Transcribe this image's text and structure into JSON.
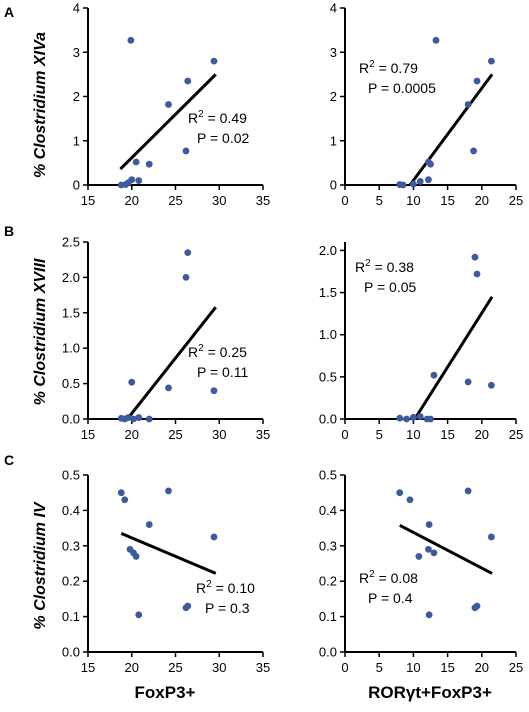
{
  "panel_letters": [
    "A",
    "B",
    "C"
  ],
  "row_labels": [
    "% Clostridium XIVa",
    "% Clostridium XVIII",
    "% Clostridium IV"
  ],
  "row_label_prefix": "% ",
  "row_label_names": [
    "Clostridium XIVa",
    "Clostridium XVIII",
    "Clostridium IV"
  ],
  "x_labels": [
    "FoxP3+",
    "RORγt+FoxP3+"
  ],
  "colors": {
    "point": "#3d5a9e",
    "line": "#000000",
    "axis": "#000000"
  },
  "chart_data": [
    {
      "id": "A-left",
      "type": "scatter",
      "xlim": [
        15,
        35
      ],
      "xticks": [
        "15",
        "20",
        "25",
        "30",
        "35"
      ],
      "ylim": [
        0,
        4
      ],
      "yticks": [
        "0",
        "1",
        "2",
        "3",
        "4"
      ],
      "points": [
        [
          18.8,
          0.0
        ],
        [
          19.3,
          0.01
        ],
        [
          19.6,
          0.05
        ],
        [
          20.0,
          0.12
        ],
        [
          19.9,
          3.27
        ],
        [
          20.5,
          0.52
        ],
        [
          20.8,
          0.1
        ],
        [
          22.0,
          0.47
        ],
        [
          24.2,
          1.82
        ],
        [
          26.2,
          0.77
        ],
        [
          26.4,
          2.35
        ],
        [
          29.4,
          2.8
        ]
      ],
      "fit": [
        [
          18.7,
          0.36
        ],
        [
          29.6,
          2.5
        ]
      ],
      "annotation": {
        "r2_label": "R",
        "r2_exp": "2",
        "r2_value": " = 0.49",
        "p_text": "P = 0.02",
        "pos": "right-middle"
      }
    },
    {
      "id": "A-right",
      "type": "scatter",
      "xlim": [
        0,
        25
      ],
      "xticks": [
        "0",
        "5",
        "10",
        "15",
        "20",
        "25"
      ],
      "ylim": [
        0,
        4
      ],
      "yticks": [
        "0",
        "1",
        "2",
        "3",
        "4"
      ],
      "points": [
        [
          8.0,
          0.01
        ],
        [
          8.5,
          0.0
        ],
        [
          10.0,
          0.02
        ],
        [
          11.0,
          0.08
        ],
        [
          12.2,
          0.12
        ],
        [
          12.2,
          0.52
        ],
        [
          12.5,
          0.47
        ],
        [
          13.3,
          3.27
        ],
        [
          18.0,
          1.82
        ],
        [
          18.8,
          0.77
        ],
        [
          19.3,
          2.35
        ],
        [
          21.4,
          2.8
        ]
      ],
      "fit": [
        [
          9.5,
          0.0
        ],
        [
          21.5,
          2.5
        ]
      ],
      "annotation": {
        "r2_label": "R",
        "r2_exp": "2",
        "r2_value": " = 0.79",
        "p_text": "P = 0.0005",
        "pos": "upper-middle"
      }
    },
    {
      "id": "B-left",
      "type": "scatter",
      "xlim": [
        15,
        35
      ],
      "xticks": [
        "15",
        "20",
        "25",
        "30",
        "35"
      ],
      "ylim": [
        0,
        2.5
      ],
      "yticks": [
        "0.0",
        "0.5",
        "1.0",
        "1.5",
        "2.0",
        "2.5"
      ],
      "points": [
        [
          18.8,
          0.01
        ],
        [
          19.2,
          0.0
        ],
        [
          19.6,
          0.02
        ],
        [
          20.0,
          0.52
        ],
        [
          20.2,
          0.0
        ],
        [
          20.8,
          0.02
        ],
        [
          22.0,
          0.0
        ],
        [
          24.2,
          0.44
        ],
        [
          26.2,
          2.0
        ],
        [
          26.4,
          2.35
        ],
        [
          29.4,
          0.4
        ]
      ],
      "fit": [
        [
          19.5,
          0.0
        ],
        [
          29.6,
          1.58
        ]
      ],
      "annotation": {
        "r2_label": "R",
        "r2_exp": "2",
        "r2_value": " = 0.25",
        "p_text": "P = 0.11",
        "pos": "right-middle"
      }
    },
    {
      "id": "B-right",
      "type": "scatter",
      "xlim": [
        0,
        25
      ],
      "xticks": [
        "0",
        "5",
        "10",
        "15",
        "20",
        "25"
      ],
      "ylim": [
        0,
        2.1
      ],
      "yticks": [
        "0.0",
        "0.5",
        "1.0",
        "1.5",
        "2.0"
      ],
      "points": [
        [
          8.0,
          0.01
        ],
        [
          9.0,
          0.0
        ],
        [
          10.0,
          0.02
        ],
        [
          11.0,
          0.03
        ],
        [
          12.0,
          0.0
        ],
        [
          12.5,
          0.0
        ],
        [
          13.0,
          0.52
        ],
        [
          18.0,
          0.44
        ],
        [
          19.0,
          1.92
        ],
        [
          19.3,
          1.72
        ],
        [
          21.4,
          0.4
        ]
      ],
      "fit": [
        [
          10.2,
          0.0
        ],
        [
          21.5,
          1.45
        ]
      ],
      "annotation": {
        "r2_label": "R",
        "r2_exp": "2",
        "r2_value": " = 0.38",
        "p_text": "P = 0.05",
        "pos": "top-left"
      }
    },
    {
      "id": "C-left",
      "type": "scatter",
      "xlim": [
        15,
        35
      ],
      "xticks": [
        "15",
        "20",
        "25",
        "30",
        "35"
      ],
      "ylim": [
        0,
        0.5
      ],
      "yticks": [
        "0.0",
        "0.1",
        "0.2",
        "0.3",
        "0.4",
        "0.5"
      ],
      "points": [
        [
          18.8,
          0.45
        ],
        [
          19.2,
          0.43
        ],
        [
          19.8,
          0.29
        ],
        [
          20.2,
          0.28
        ],
        [
          20.5,
          0.27
        ],
        [
          20.8,
          0.105
        ],
        [
          22.0,
          0.36
        ],
        [
          24.2,
          0.455
        ],
        [
          26.2,
          0.125
        ],
        [
          26.4,
          0.13
        ],
        [
          29.4,
          0.325
        ]
      ],
      "fit": [
        [
          18.8,
          0.335
        ],
        [
          29.6,
          0.222
        ]
      ],
      "annotation": {
        "r2_label": "R",
        "r2_exp": "2",
        "r2_value": " = 0.10",
        "p_text": "P = 0.3",
        "pos": "right-lower"
      }
    },
    {
      "id": "C-right",
      "type": "scatter",
      "xlim": [
        0,
        25
      ],
      "xticks": [
        "0",
        "5",
        "10",
        "15",
        "20",
        "25"
      ],
      "ylim": [
        0,
        0.5
      ],
      "yticks": [
        "0.0",
        "0.1",
        "0.2",
        "0.3",
        "0.4",
        "0.5"
      ],
      "points": [
        [
          8.0,
          0.45
        ],
        [
          9.5,
          0.43
        ],
        [
          10.8,
          0.27
        ],
        [
          12.2,
          0.29
        ],
        [
          12.3,
          0.36
        ],
        [
          12.3,
          0.105
        ],
        [
          13.0,
          0.28
        ],
        [
          18.0,
          0.455
        ],
        [
          19.0,
          0.125
        ],
        [
          19.3,
          0.13
        ],
        [
          21.4,
          0.325
        ]
      ],
      "fit": [
        [
          8.0,
          0.358
        ],
        [
          21.5,
          0.222
        ]
      ],
      "annotation": {
        "r2_label": "R",
        "r2_exp": "2",
        "r2_value": " = 0.08",
        "p_text": "P = 0.4",
        "pos": "left-lower"
      }
    }
  ]
}
